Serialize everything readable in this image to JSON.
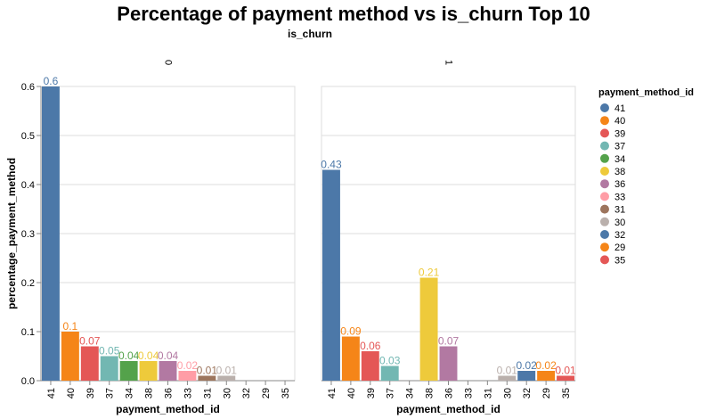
{
  "chart_data": {
    "type": "bar",
    "title": "Percentage of payment method vs is_churn Top 10",
    "facet_title": "is_churn",
    "xlabel": "payment_method_id",
    "ylabel": "percentage_payment_method",
    "ylim": [
      0,
      0.6
    ],
    "yticks": [
      "0.0",
      "0.1",
      "0.2",
      "0.3",
      "0.4",
      "0.5",
      "0.6"
    ],
    "categories": [
      "41",
      "40",
      "39",
      "37",
      "34",
      "38",
      "36",
      "33",
      "31",
      "30",
      "32",
      "29",
      "35"
    ],
    "grid": true,
    "legend_position": "right",
    "legend_title": "payment_method_id",
    "colors": {
      "41": "#4c78a8",
      "40": "#f58518",
      "39": "#e45756",
      "37": "#72b7b2",
      "34": "#54a24b",
      "38": "#eeca3b",
      "36": "#b279a2",
      "33": "#ff9da6",
      "31": "#9d755d",
      "30": "#bab0ac",
      "32": "#4c78a8",
      "29": "#f58518",
      "35": "#e45756"
    },
    "facets": [
      {
        "name": "0",
        "bars": [
          {
            "category": "41",
            "value": 0.6,
            "label": "0.6"
          },
          {
            "category": "40",
            "value": 0.1,
            "label": "0.1"
          },
          {
            "category": "39",
            "value": 0.07,
            "label": "0.07"
          },
          {
            "category": "37",
            "value": 0.05,
            "label": "0.05"
          },
          {
            "category": "34",
            "value": 0.04,
            "label": "0.04"
          },
          {
            "category": "38",
            "value": 0.04,
            "label": "0.04"
          },
          {
            "category": "36",
            "value": 0.04,
            "label": "0.04"
          },
          {
            "category": "33",
            "value": 0.02,
            "label": "0.02"
          },
          {
            "category": "31",
            "value": 0.01,
            "label": "0.01"
          },
          {
            "category": "30",
            "value": 0.01,
            "label": "0.01"
          }
        ]
      },
      {
        "name": "1",
        "bars": [
          {
            "category": "41",
            "value": 0.43,
            "label": "0.43"
          },
          {
            "category": "40",
            "value": 0.09,
            "label": "0.09"
          },
          {
            "category": "39",
            "value": 0.06,
            "label": "0.06"
          },
          {
            "category": "37",
            "value": 0.03,
            "label": "0.03"
          },
          {
            "category": "38",
            "value": 0.21,
            "label": "0.21"
          },
          {
            "category": "36",
            "value": 0.07,
            "label": "0.07"
          },
          {
            "category": "30",
            "value": 0.01,
            "label": "0.01"
          },
          {
            "category": "32",
            "value": 0.02,
            "label": "0.02"
          },
          {
            "category": "29",
            "value": 0.02,
            "label": "0.02"
          },
          {
            "category": "35",
            "value": 0.01,
            "label": "0.01"
          }
        ]
      }
    ]
  }
}
